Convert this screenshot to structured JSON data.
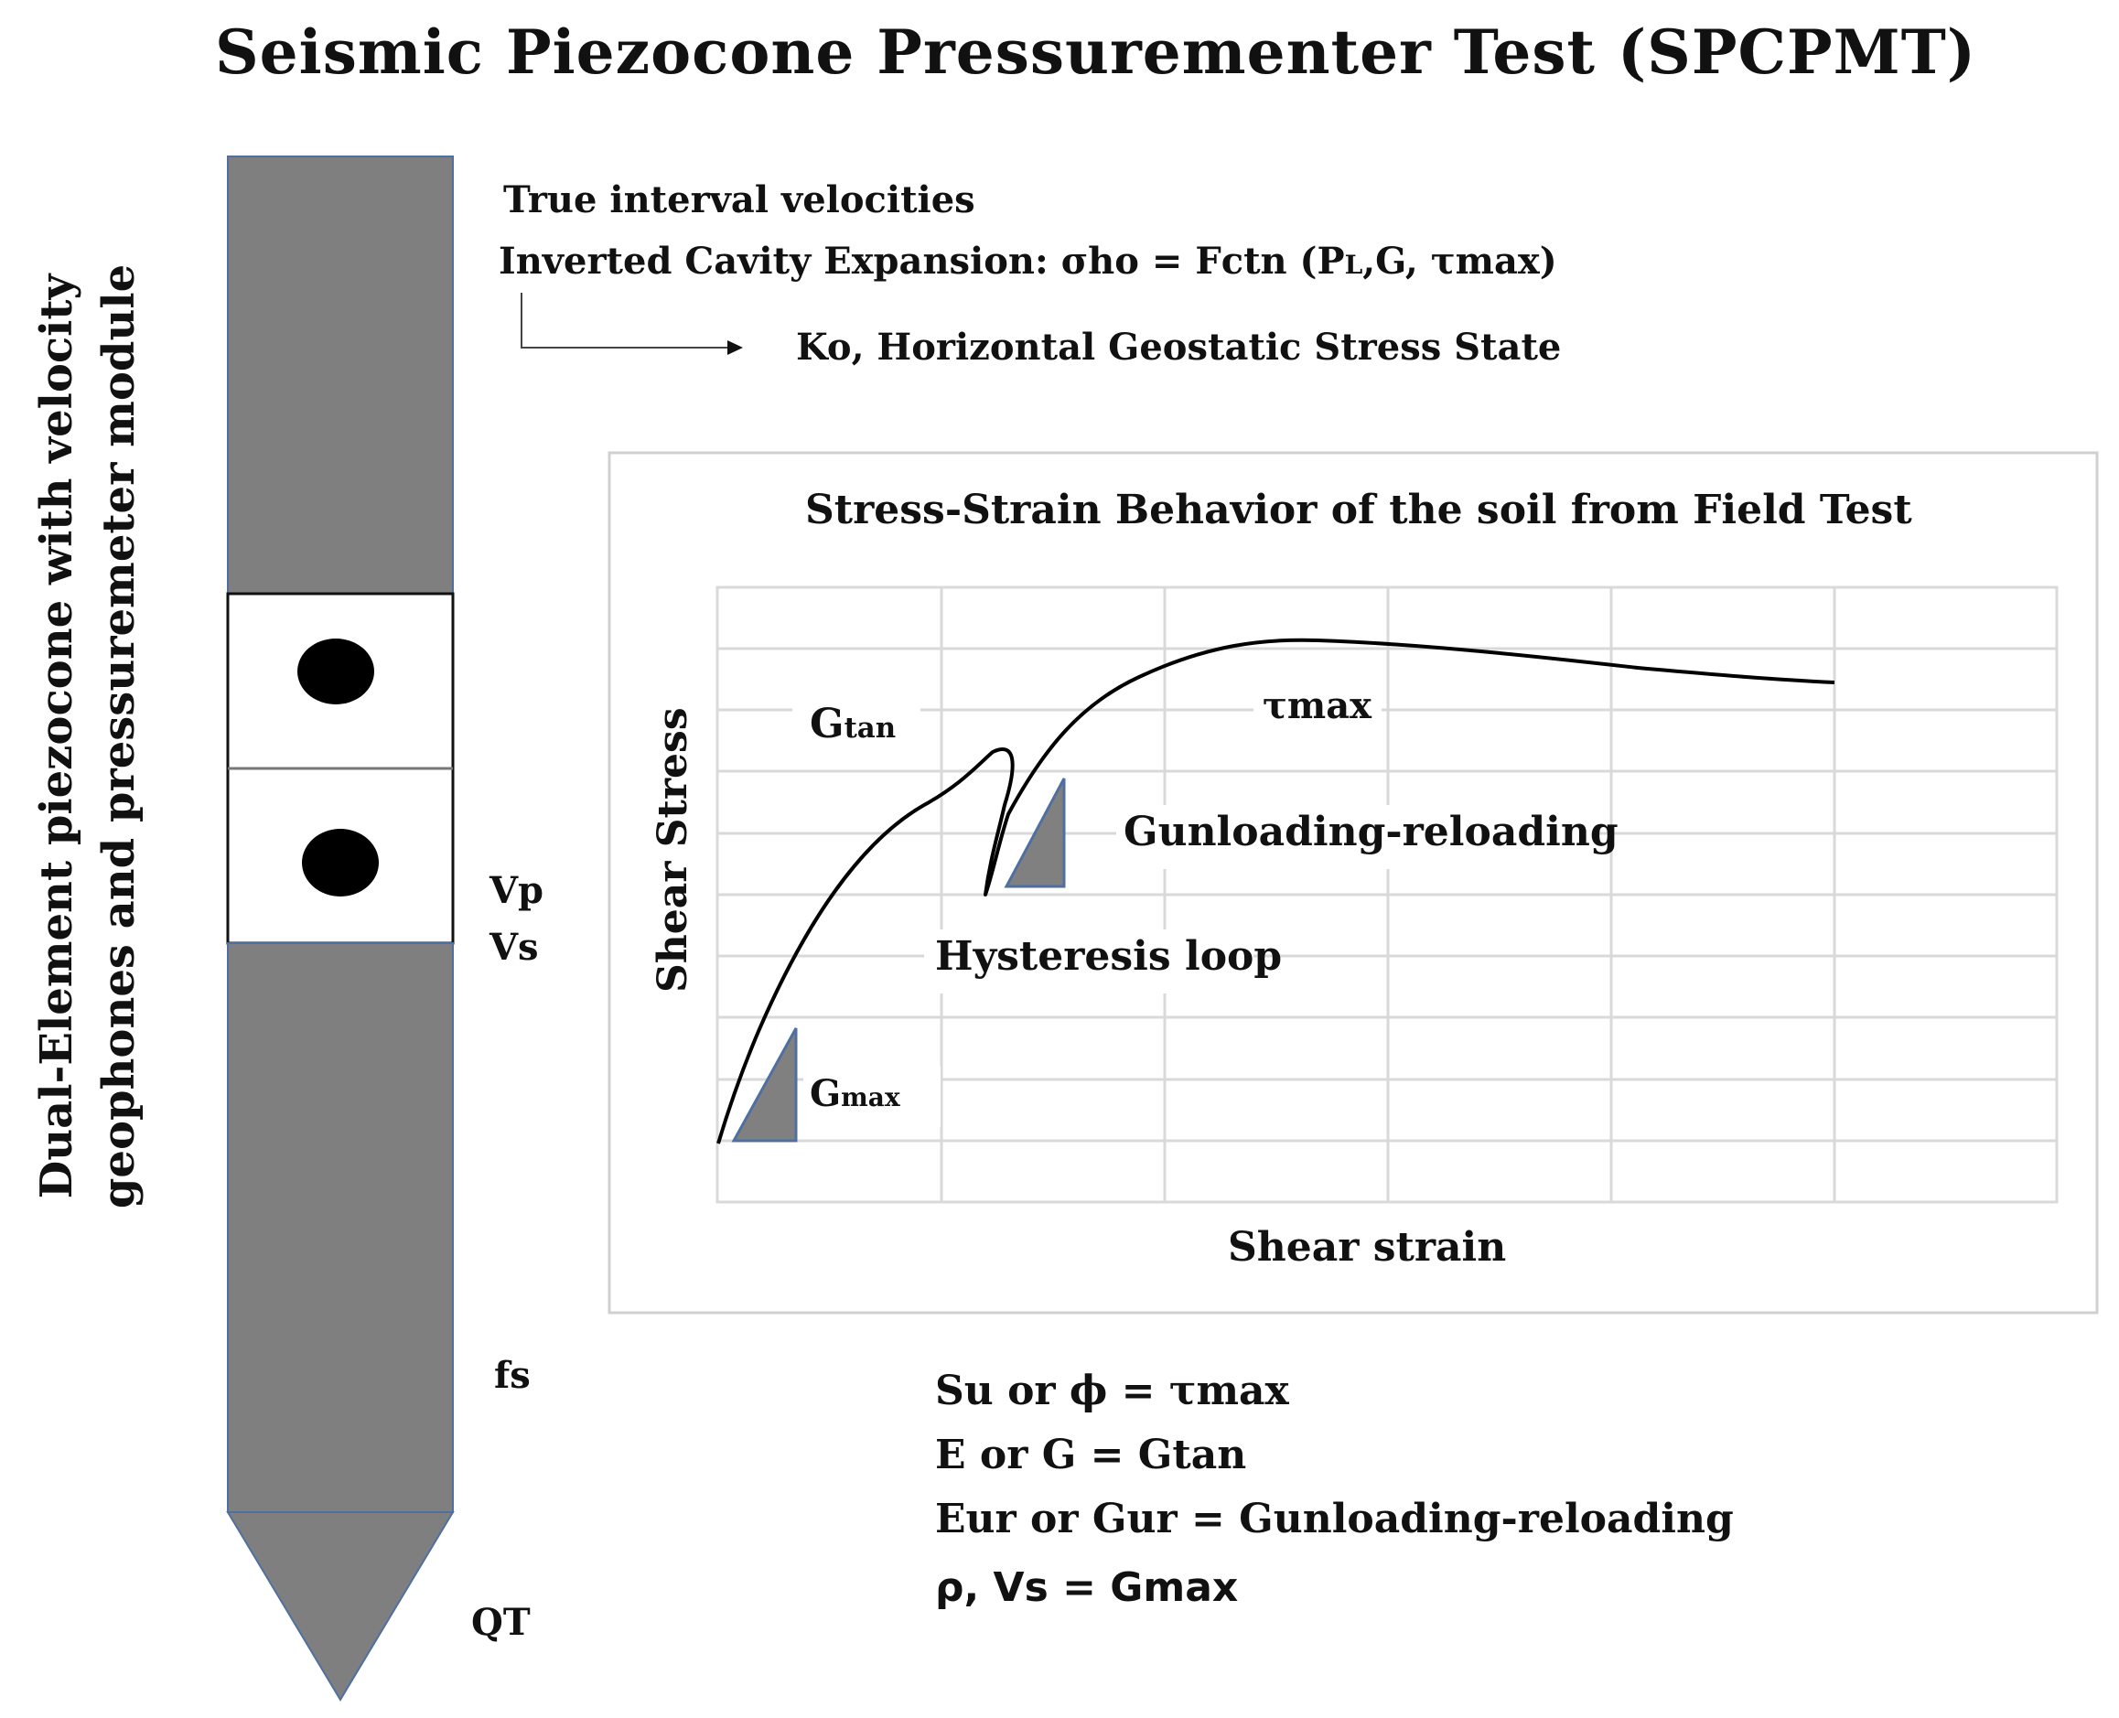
{
  "title": "Seismic Piezocone Pressurementer Test (SPCPMT)",
  "probe_label": {
    "line1": "Dual-Element piezocone with velocity",
    "line2": "geophones and pressuremeter module"
  },
  "probe_readouts": {
    "vp": "Vp",
    "vs": "Vs",
    "fs": "fs",
    "qt": "QT"
  },
  "notes": {
    "velocities": "True interval velocities",
    "cavity_prefix": "Inverted Cavity Expansion: ",
    "cavity_sigma": "σho",
    "cavity_mid": " = Fctn (P",
    "cavity_pl_sub": "L",
    "cavity_suffix": ",G, τmax)",
    "ko_result": "Ko, Horizontal Geostatic Stress State"
  },
  "chart": {
    "title": "Stress-Strain Behavior of the soil from Field Test",
    "xlabel": "Shear strain",
    "ylabel": "Shear Stress",
    "labels": {
      "gtan": "G",
      "gtan_sub": "tan",
      "tmax": "τmax",
      "gunloading": "Gunloading-reloading",
      "hysteresis": "Hysteresis loop",
      "gmax": "G",
      "gmax_sub": "max"
    }
  },
  "relations": [
    {
      "lhs": "Su or ϕ = ",
      "rhs": "τmax"
    },
    {
      "lhs": "E or G = ",
      "rhs": "Gtan"
    },
    {
      "lhs": "Eur or Gur = ",
      "rhs": "Gunloading-reloading"
    },
    {
      "lhs": "ρ, Vs = ",
      "rhs": "Gmax"
    }
  ],
  "colors": {
    "probe": "#7f7f7f",
    "probe_edge": "#4f6fa0",
    "grid": "#d9d9d9",
    "frame": "#d0d0d0",
    "curve": "#000000",
    "triangle_fill": "#808080",
    "triangle_edge": "#4f6fa0"
  }
}
